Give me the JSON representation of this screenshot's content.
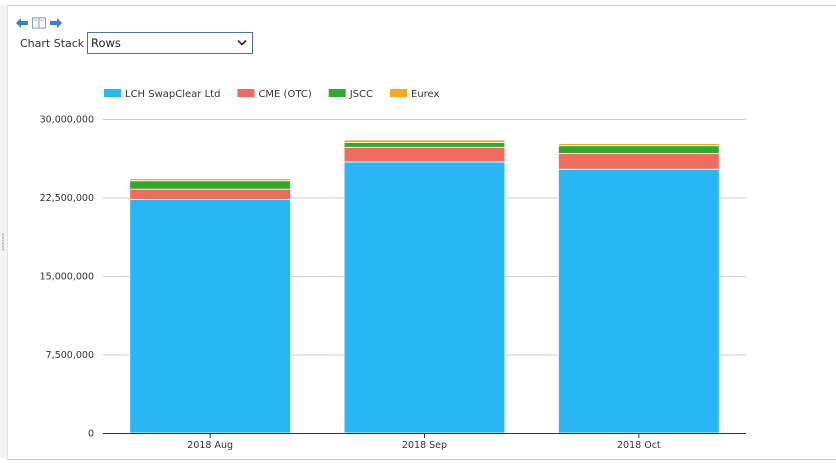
{
  "toolbar": {
    "back_icon": "arrow-left-icon",
    "layout_icon": "split-panel-icon",
    "forward_icon": "arrow-right-icon",
    "icon_color": "#3a7fd0"
  },
  "chart_stack": {
    "label": "Chart Stack :",
    "selected": "Rows"
  },
  "chart_data": {
    "type": "bar",
    "stacked": true,
    "categories": [
      "2018 Aug",
      "2018 Sep",
      "2018 Oct"
    ],
    "series": [
      {
        "name": "LCH SwapClear Ltd",
        "color": "#29b6f6",
        "values": [
          22300000,
          25900000,
          25200000
        ]
      },
      {
        "name": "CME (OTC)",
        "color": "#ef6b5e",
        "values": [
          1000000,
          1400000,
          1500000
        ]
      },
      {
        "name": "JSCC",
        "color": "#2eaa2e",
        "values": [
          800000,
          450000,
          750000
        ]
      },
      {
        "name": "Eurex",
        "color": "#f5a623",
        "values": [
          200000,
          250000,
          200000
        ]
      }
    ],
    "yticks": [
      "0",
      "7,500,000",
      "15,000,000",
      "22,500,000",
      "30,000,000"
    ],
    "ylim": [
      0,
      30000000
    ],
    "grid": true,
    "legend_position": "top-left"
  }
}
